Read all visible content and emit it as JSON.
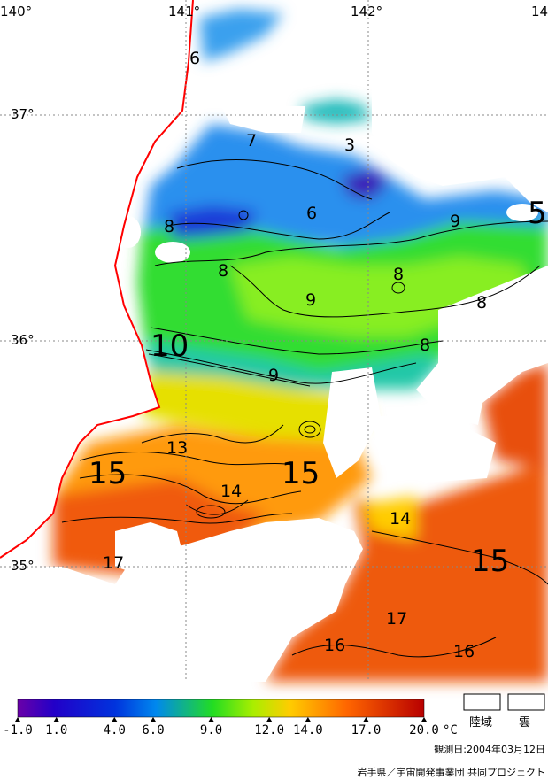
{
  "graticule": {
    "lon_labels": [
      "140°",
      "141°",
      "142°",
      "14"
    ],
    "lat_labels": [
      "37°",
      "36°",
      "35°"
    ]
  },
  "isotherm_labels": {
    "small": [
      "6",
      "7",
      "3",
      "8",
      "6",
      "9",
      "8",
      "8",
      "9",
      "8",
      "8",
      "9",
      "13",
      "14",
      "14",
      "17",
      "16",
      "16",
      "17"
    ],
    "large": [
      "10",
      "15",
      "15",
      "15",
      "5"
    ]
  },
  "colorbar": {
    "min": -1.0,
    "max": 20.0,
    "tick_labels": [
      "-1.0",
      "1.0",
      "4.0",
      "6.0",
      "9.0",
      "12.0",
      "14.0",
      "17.0",
      "20.0"
    ],
    "unit": "°C",
    "colors": [
      "#6a00a8",
      "#2200c8",
      "#0033dd",
      "#0088ee",
      "#00c8b0",
      "#22dd22",
      "#88ee00",
      "#dddd00",
      "#ffaa00",
      "#ff6600",
      "#dd2200",
      "#b80000"
    ]
  },
  "legend": {
    "land_label": "陸域",
    "cloud_label": "雲"
  },
  "footer": {
    "observation_date": "観測日:2004年03月12日",
    "credit": "岩手県／宇宙開発事業団 共同プロジェクト"
  },
  "colors": {
    "coastline": "#ff0000",
    "grid": "#888888"
  }
}
